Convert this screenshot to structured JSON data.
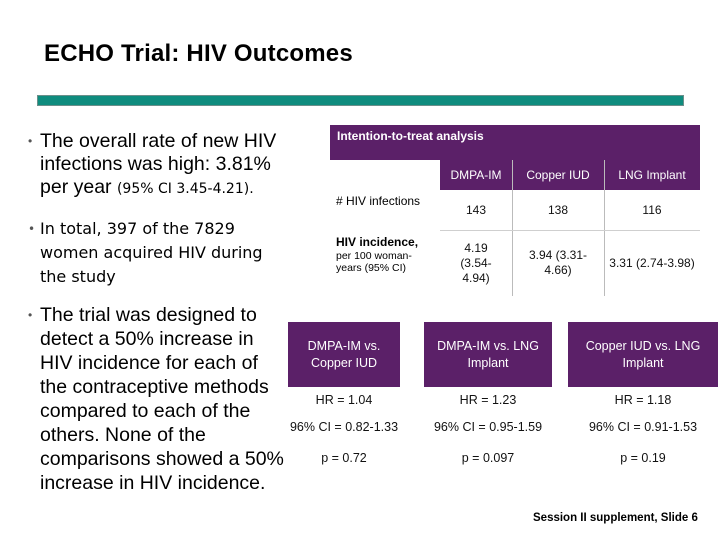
{
  "title": "ECHO Trial: HIV Outcomes",
  "bullets": {
    "b1_main": "The overall rate of new HIV infections was high: 3.81% per year",
    "b1_ci": "(95% CI 3.45-4.21).",
    "b2": "In total, 397 of the 7829 women acquired HIV during the study",
    "b3": "The trial was designed to detect a 50% increase in HIV incidence for each of the contraceptive methods compared to each of the others. None of the comparisons showed a 50% increase in HIV incidence."
  },
  "itt_table": {
    "header": "Intention-to-treat analysis",
    "columns": [
      "DMPA-IM",
      "Copper IUD",
      "LNG Implant"
    ],
    "row1": {
      "label": "# HIV infections",
      "values": [
        "143",
        "138",
        "116"
      ]
    },
    "row2": {
      "label": "HIV incidence,",
      "sublabel": "per 100 woman-years (95% CI)",
      "values": [
        "4.19 (3.54-4.94)",
        "3.94 (3.31-4.66)",
        "3.31 (2.74-3.98)"
      ]
    }
  },
  "hr_table": {
    "comparisons": [
      {
        "label": "DMPA-IM vs. Copper IUD",
        "hr": "HR = 1.04",
        "ci": "96% CI = 0.82-1.33",
        "p": "p = 0.72"
      },
      {
        "label": "DMPA-IM vs. LNG Implant",
        "hr": "HR = 1.23",
        "ci": "96% CI = 0.95-1.59",
        "p": "p = 0.097"
      },
      {
        "label": "Copper IUD vs. LNG Implant",
        "hr": "HR = 1.18",
        "ci": "96% CI = 0.91-1.53",
        "p": "p = 0.19"
      }
    ]
  },
  "footer": "Session II supplement, Slide 6",
  "colors": {
    "header_purple": "#5b2068",
    "title_bar_teal": "#0f8c7e"
  }
}
